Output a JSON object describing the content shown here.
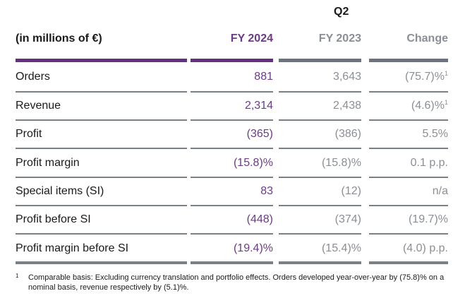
{
  "period": "Q2",
  "header": {
    "label": "(in millions of €)",
    "col1": "FY 2024",
    "col2": "FY 2023",
    "col3": "Change"
  },
  "rows": [
    {
      "label": "Orders",
      "fy2024": "881",
      "fy2023": "3,643",
      "change": "(75.7)%",
      "change_note": "1"
    },
    {
      "label": "Revenue",
      "fy2024": "2,314",
      "fy2023": "2,438",
      "change": "(4.6)%",
      "change_note": "1"
    },
    {
      "label": "Profit",
      "fy2024": "(365)",
      "fy2023": "(386)",
      "change": "5.5%",
      "change_note": ""
    },
    {
      "label": "Profit margin",
      "fy2024": "(15.8)%",
      "fy2023": "(15.8)%",
      "change": "0.1 p.p.",
      "change_note": ""
    },
    {
      "label": "Special items (SI)",
      "fy2024": "83",
      "fy2023": "(12)",
      "change": "n/a",
      "change_note": ""
    },
    {
      "label": "Profit before SI",
      "fy2024": "(448)",
      "fy2023": "(374)",
      "change": "(19.7)%",
      "change_note": ""
    },
    {
      "label": "Profit margin before SI",
      "fy2024": "(19.4)%",
      "fy2023": "(15.4)%",
      "change": "(4.0) p.p.",
      "change_note": ""
    }
  ],
  "footnote": {
    "mark": "1",
    "text": "Comparable basis: Excluding currency translation and portfolio effects. Orders developed year-over-year by (75.8)% on a nominal basis, revenue respectively by (5.1)%."
  },
  "colors": {
    "fy2024": "#6b3b86",
    "fy2023": "#8a8f96",
    "accent_bar": "#64317f",
    "grey_bar": "#6c7380"
  }
}
